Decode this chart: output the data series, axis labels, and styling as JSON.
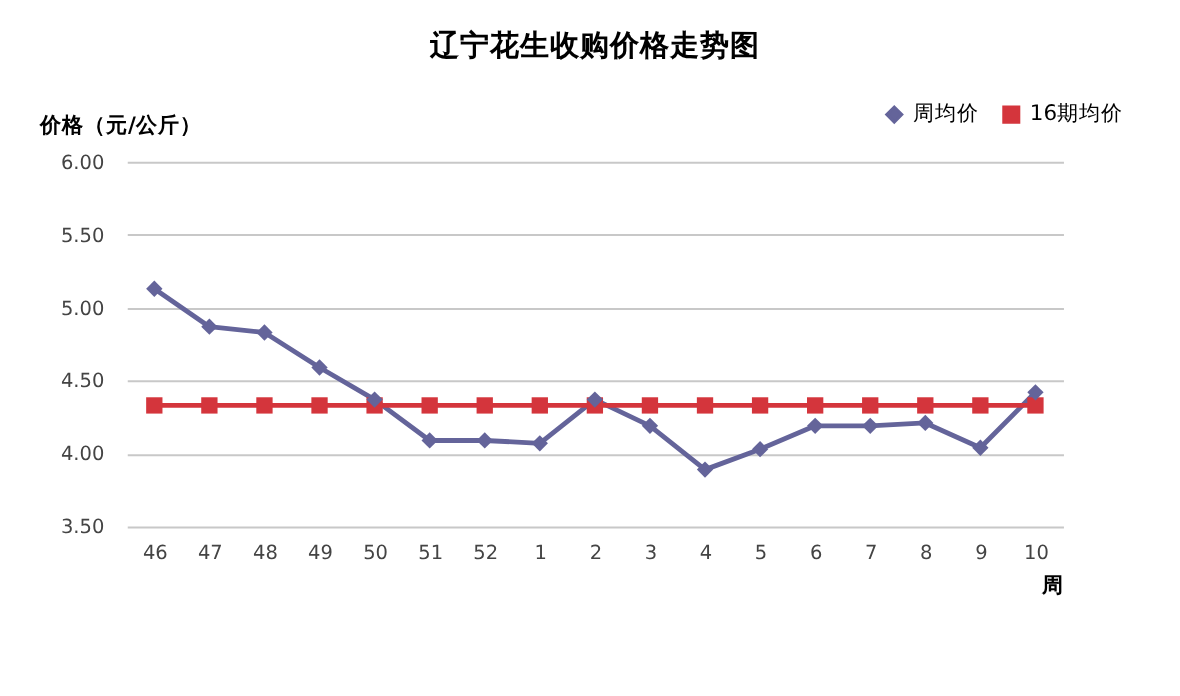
{
  "chart_data": {
    "type": "line",
    "title": "辽宁花生收购价格走势图",
    "xlabel": "周",
    "ylabel": "价格（元/公斤）",
    "categories": [
      "46",
      "47",
      "48",
      "49",
      "50",
      "51",
      "52",
      "1",
      "2",
      "3",
      "4",
      "5",
      "6",
      "7",
      "8",
      "9",
      "10"
    ],
    "series": [
      {
        "name": "周均价",
        "color": "#64649a",
        "marker": "diamond",
        "values": [
          5.13,
          4.87,
          4.83,
          4.59,
          4.37,
          4.09,
          4.09,
          4.07,
          4.37,
          4.19,
          3.89,
          4.03,
          4.19,
          4.19,
          4.21,
          4.04,
          4.42
        ]
      },
      {
        "name": "16期均价",
        "color": "#d4353c",
        "marker": "square",
        "values": [
          4.33,
          4.33,
          4.33,
          4.33,
          4.33,
          4.33,
          4.33,
          4.33,
          4.33,
          4.33,
          4.33,
          4.33,
          4.33,
          4.33,
          4.33,
          4.33,
          4.33
        ]
      }
    ],
    "ylim": [
      3.5,
      6.0
    ],
    "yticks": [
      {
        "value": 3.5,
        "label": "3.50"
      },
      {
        "value": 4.0,
        "label": "4.00"
      },
      {
        "value": 4.5,
        "label": "4.50"
      },
      {
        "value": 5.0,
        "label": "5.00"
      },
      {
        "value": 5.5,
        "label": "5.50"
      },
      {
        "value": 6.0,
        "label": "6.00"
      }
    ],
    "grid": "y",
    "legend": "top right"
  }
}
